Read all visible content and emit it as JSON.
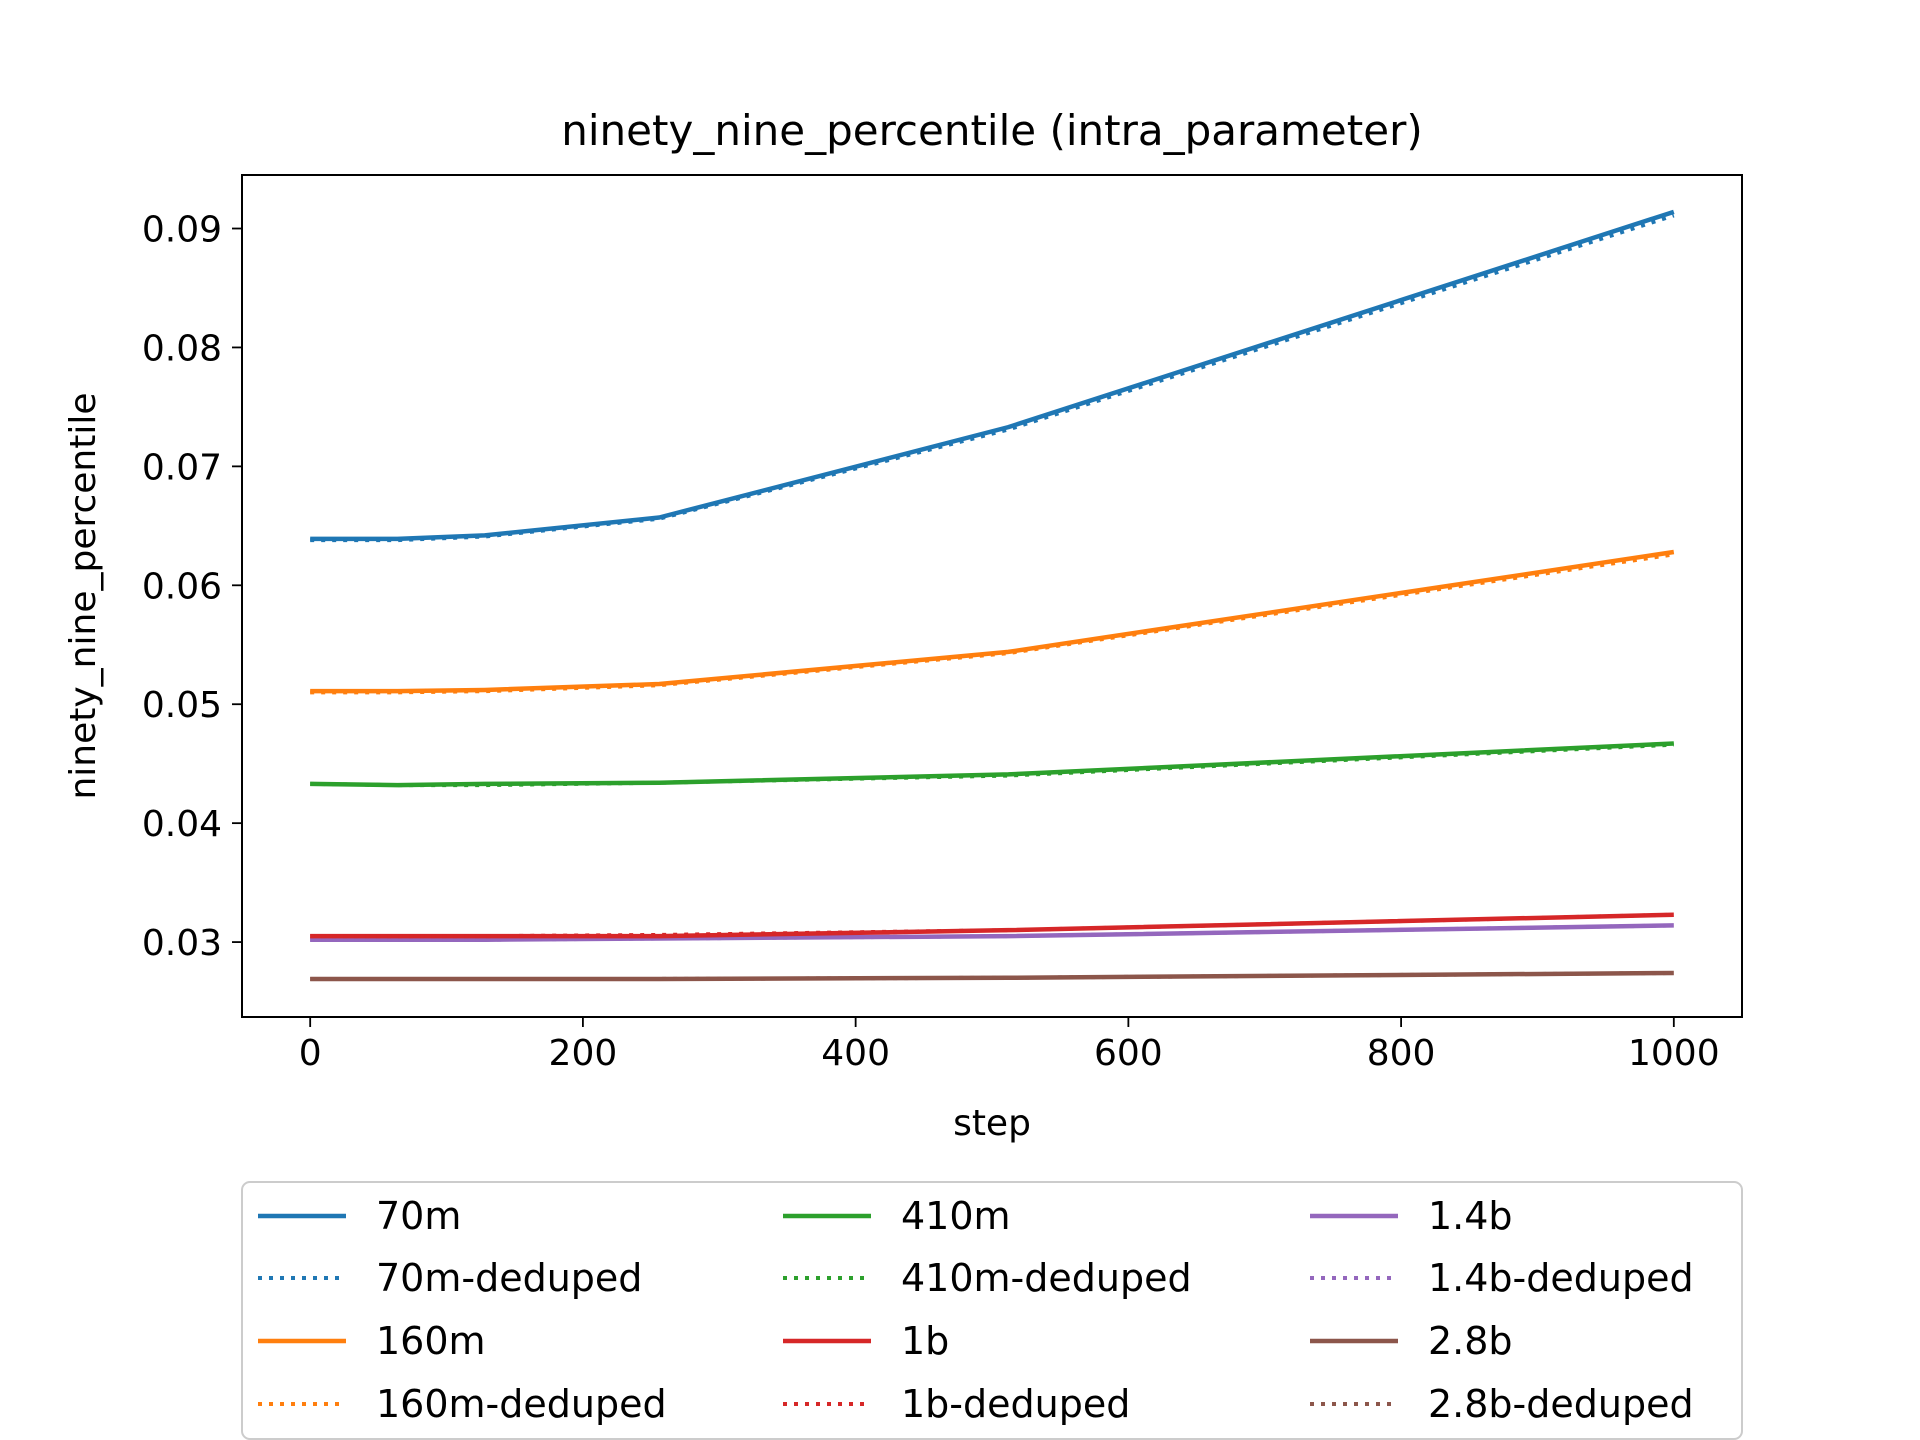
{
  "chart_data": {
    "type": "line",
    "title": "ninety_nine_percentile (intra_parameter)",
    "xlabel": "step",
    "ylabel": "ninety_nine_percentile",
    "xlim": [
      -50,
      1050
    ],
    "ylim": [
      0.0237,
      0.0945
    ],
    "xticks": [
      0,
      200,
      400,
      600,
      800,
      1000
    ],
    "xtick_labels": [
      "0",
      "200",
      "400",
      "600",
      "800",
      "1000"
    ],
    "yticks": [
      0.03,
      0.04,
      0.05,
      0.06,
      0.07,
      0.08,
      0.09
    ],
    "ytick_labels": [
      "0.03",
      "0.04",
      "0.05",
      "0.06",
      "0.07",
      "0.08",
      "0.09"
    ],
    "grid": false,
    "legend_placement": "below chart, 3 columns",
    "x": [
      0,
      64,
      128,
      256,
      512,
      1000
    ],
    "series": [
      {
        "name": "70m",
        "color": "#1f77b4",
        "style": "solid",
        "values": [
          0.0639,
          0.0639,
          0.0642,
          0.0657,
          0.0733,
          0.0914
        ]
      },
      {
        "name": "70m-deduped",
        "color": "#1f77b4",
        "style": "dotted",
        "values": [
          0.0638,
          0.0638,
          0.0641,
          0.0656,
          0.0731,
          0.0911
        ]
      },
      {
        "name": "160m",
        "color": "#ff7f0e",
        "style": "solid",
        "values": [
          0.0511,
          0.0511,
          0.0512,
          0.0517,
          0.0544,
          0.0628
        ]
      },
      {
        "name": "160m-deduped",
        "color": "#ff7f0e",
        "style": "dotted",
        "values": [
          0.051,
          0.051,
          0.0511,
          0.0516,
          0.0543,
          0.0626
        ]
      },
      {
        "name": "410m",
        "color": "#2ca02c",
        "style": "solid",
        "values": [
          0.0433,
          0.0432,
          0.0433,
          0.0434,
          0.0441,
          0.0467
        ]
      },
      {
        "name": "410m-deduped",
        "color": "#2ca02c",
        "style": "dotted",
        "values": [
          0.0433,
          0.0432,
          0.0432,
          0.0434,
          0.044,
          0.0466
        ]
      },
      {
        "name": "1.4b",
        "color": "#9467bd",
        "style": "solid",
        "values": [
          0.0302,
          0.0302,
          0.0302,
          0.0303,
          0.0305,
          0.0314
        ]
      },
      {
        "name": "1.4b-deduped",
        "color": "#9467bd",
        "style": "dotted",
        "values": [
          0.0302,
          0.0302,
          0.0302,
          0.0303,
          0.0305,
          0.0314
        ]
      },
      {
        "name": "1b",
        "color": "#d62728",
        "style": "solid",
        "values": [
          0.0305,
          0.0305,
          0.0305,
          0.0305,
          0.031,
          0.0323
        ]
      },
      {
        "name": "1b-deduped",
        "color": "#d62728",
        "style": "dotted",
        "values": [
          0.0305,
          0.0305,
          0.0305,
          0.0306,
          0.031,
          0.0323
        ]
      },
      {
        "name": "2.8b",
        "color": "#8c564b",
        "style": "solid",
        "values": [
          0.0269,
          0.0269,
          0.0269,
          0.0269,
          0.027,
          0.0274
        ]
      },
      {
        "name": "2.8b-deduped",
        "color": "#8c564b",
        "style": "dotted",
        "values": [
          0.0269,
          0.0269,
          0.0269,
          0.0269,
          0.027,
          0.0274
        ]
      }
    ],
    "legend_order": [
      "70m",
      "70m-deduped",
      "160m",
      "160m-deduped",
      "410m",
      "410m-deduped",
      "1b",
      "1b-deduped",
      "1.4b",
      "1.4b-deduped",
      "2.8b",
      "2.8b-deduped"
    ]
  }
}
